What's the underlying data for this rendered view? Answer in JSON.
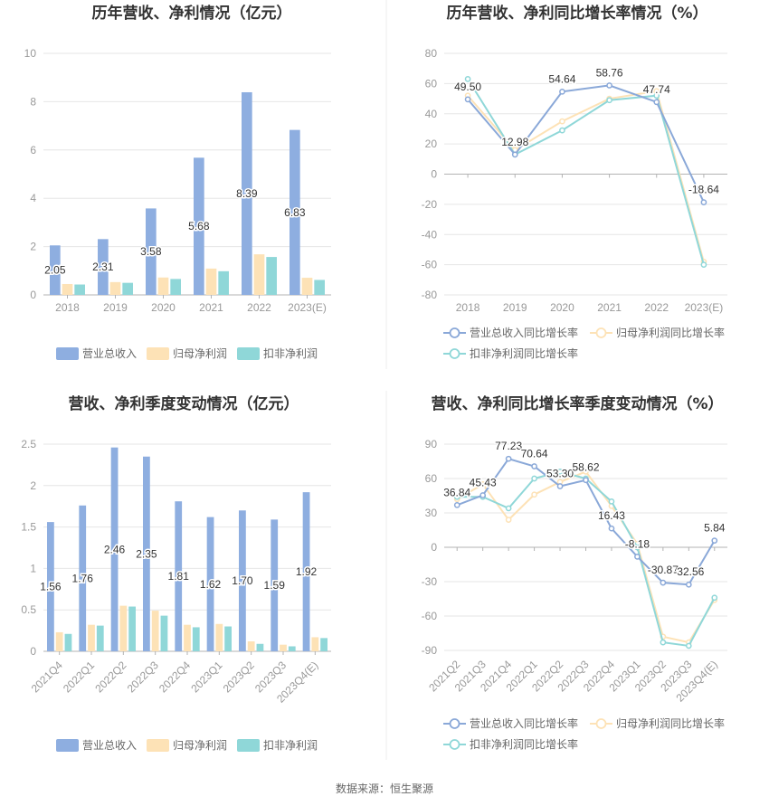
{
  "source_text": "数据来源：恒生聚源",
  "chart_data": [
    {
      "id": "annual-revenue",
      "type": "bar",
      "title": "历年营收、净利情况（亿元）",
      "categories": [
        "2018",
        "2019",
        "2020",
        "2021",
        "2022",
        "2023(E)"
      ],
      "ylim": [
        0,
        10
      ],
      "yticks": [
        "0",
        "2",
        "4",
        "6",
        "8",
        "10"
      ],
      "grid": true,
      "legend_position": "bottom",
      "series": [
        {
          "name": "营业总收入",
          "color": "#8eaee0",
          "values": [
            2.05,
            2.31,
            3.58,
            5.68,
            8.39,
            6.83
          ],
          "labels": [
            "2.05",
            "2.31",
            "3.58",
            "5.68",
            "8.39",
            "6.83"
          ]
        },
        {
          "name": "归母净利润",
          "color": "#fde2b6",
          "values": [
            0.45,
            0.53,
            0.72,
            1.09,
            1.68,
            0.71
          ]
        },
        {
          "name": "扣非净利润",
          "color": "#8fd7d8",
          "values": [
            0.43,
            0.5,
            0.66,
            0.98,
            1.57,
            0.62
          ]
        }
      ]
    },
    {
      "id": "annual-growth",
      "type": "line",
      "title": "历年营收、净利同比增长率情况（%）",
      "categories": [
        "2018",
        "2019",
        "2020",
        "2021",
        "2022",
        "2023(E)"
      ],
      "ylim": [
        -80,
        80
      ],
      "yticks": [
        "-80",
        "-60",
        "-40",
        "-20",
        "0",
        "20",
        "40",
        "60",
        "80"
      ],
      "grid": true,
      "legend_position": "bottom",
      "series": [
        {
          "name": "营业总收入同比增长率",
          "color": "#8aa8d8",
          "values": [
            49.5,
            12.98,
            54.64,
            58.76,
            47.74,
            -18.64
          ],
          "labels": [
            "49.50",
            "12.98",
            "54.64",
            "58.76",
            "47.74",
            "-18.64"
          ]
        },
        {
          "name": "归母净利润同比增长率",
          "color": "#fde2b6",
          "values": [
            52,
            16,
            35,
            50,
            55,
            -58
          ]
        },
        {
          "name": "扣非净利润同比增长率",
          "color": "#8fd7d8",
          "values": [
            63,
            13,
            29,
            49,
            52,
            -60
          ]
        }
      ]
    },
    {
      "id": "quarterly-revenue",
      "type": "bar",
      "title": "营收、净利季度变动情况（亿元）",
      "categories": [
        "2021Q4",
        "2022Q1",
        "2022Q2",
        "2022Q3",
        "2022Q4",
        "2023Q1",
        "2023Q2",
        "2023Q3",
        "2023Q4(E)"
      ],
      "ylim": [
        0,
        2.5
      ],
      "yticks": [
        "0",
        "0.5",
        "1",
        "1.5",
        "2",
        "2.5"
      ],
      "grid": true,
      "legend_position": "bottom",
      "series": [
        {
          "name": "营业总收入",
          "color": "#8eaee0",
          "values": [
            1.56,
            1.76,
            2.46,
            2.35,
            1.81,
            1.62,
            1.7,
            1.59,
            1.92
          ],
          "labels": [
            "1.56",
            "1.76",
            "2.46",
            "2.35",
            "1.81",
            "1.62",
            "1.70",
            "1.59",
            "1.92"
          ]
        },
        {
          "name": "归母净利润",
          "color": "#fde2b6",
          "values": [
            0.23,
            0.32,
            0.55,
            0.49,
            0.32,
            0.33,
            0.12,
            0.08,
            0.17
          ]
        },
        {
          "name": "扣非净利润",
          "color": "#8fd7d8",
          "values": [
            0.21,
            0.31,
            0.54,
            0.43,
            0.29,
            0.3,
            0.09,
            0.06,
            0.16
          ]
        }
      ]
    },
    {
      "id": "quarterly-growth",
      "type": "line",
      "title": "营收、净利同比增长率季度变动情况（%）",
      "categories": [
        "2021Q2",
        "2021Q3",
        "2021Q4",
        "2022Q1",
        "2022Q2",
        "2022Q3",
        "2022Q4",
        "2023Q1",
        "2023Q2",
        "2023Q3",
        "2023Q4(E)"
      ],
      "ylim": [
        -90,
        90
      ],
      "yticks": [
        "-90",
        "-60",
        "-30",
        "0",
        "30",
        "60",
        "90"
      ],
      "grid": true,
      "legend_position": "bottom",
      "series": [
        {
          "name": "营业总收入同比增长率",
          "color": "#8aa8d8",
          "values": [
            36.84,
            45.43,
            77.23,
            70.64,
            53.3,
            58.62,
            16.43,
            -8.18,
            -30.87,
            -32.56,
            5.84
          ],
          "labels": [
            "36.84",
            "45.43",
            "77.23",
            "70.64",
            "53.30",
            "58.62",
            "16.43",
            "-8.18",
            "-30.87",
            "-32.56",
            "5.84"
          ]
        },
        {
          "name": "归母净利润同比增长率",
          "color": "#fde2b6",
          "values": [
            42,
            55,
            24,
            46,
            57,
            66,
            36,
            3,
            -78,
            -83,
            -46
          ]
        },
        {
          "name": "扣非净利润同比增长率",
          "color": "#8fd7d8",
          "values": [
            44,
            44,
            34,
            60,
            66,
            60,
            40,
            0,
            -83,
            -86,
            -44
          ]
        }
      ]
    }
  ]
}
